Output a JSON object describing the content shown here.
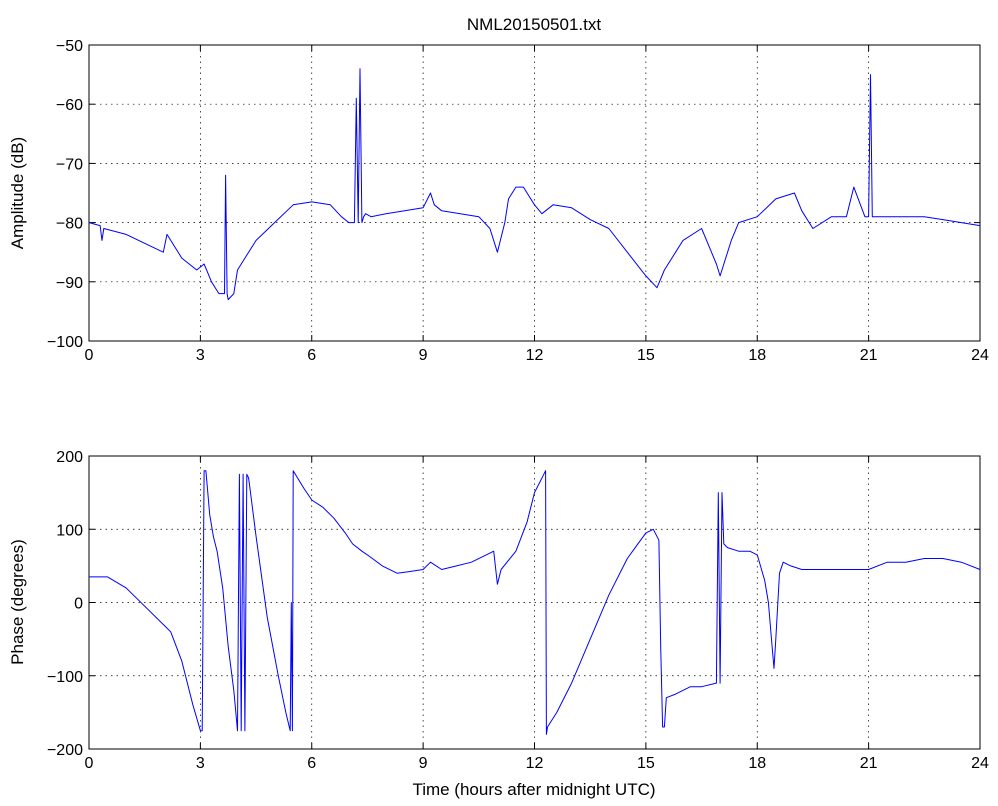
{
  "title": "NML20150501.txt",
  "chart_data": [
    {
      "type": "line",
      "ylabel": "Amplitude (dB)",
      "xlabel": "",
      "xlim": [
        0,
        24
      ],
      "ylim": [
        -100,
        -50
      ],
      "xticks": [
        0,
        3,
        6,
        9,
        12,
        15,
        18,
        21,
        24
      ],
      "yticks": [
        -100,
        -90,
        -80,
        -70,
        -60,
        -50
      ],
      "xtick_labels": [
        "0",
        "3",
        "6",
        "9",
        "12",
        "15",
        "18",
        "21",
        "24"
      ],
      "ytick_labels": [
        "−100",
        "−90",
        "−80",
        "−70",
        "−60",
        "−50"
      ],
      "grid": true,
      "color": "#0000ff",
      "x": [
        0,
        0.3,
        0.35,
        0.4,
        1.0,
        1.5,
        2.0,
        2.1,
        2.5,
        2.9,
        3.1,
        3.3,
        3.5,
        3.65,
        3.68,
        3.72,
        3.75,
        3.9,
        4.0,
        4.2,
        4.5,
        5.0,
        5.5,
        6.0,
        6.5,
        6.8,
        7.0,
        7.15,
        7.2,
        7.25,
        7.3,
        7.35,
        7.4,
        7.45,
        7.6,
        8.0,
        8.5,
        9.0,
        9.2,
        9.3,
        9.5,
        10.0,
        10.5,
        10.8,
        11.0,
        11.2,
        11.3,
        11.5,
        11.7,
        12.0,
        12.2,
        12.5,
        13.0,
        13.5,
        14.0,
        14.5,
        15.0,
        15.3,
        15.5,
        15.8,
        16.0,
        16.5,
        16.9,
        17.0,
        17.3,
        17.5,
        18.0,
        18.5,
        19.0,
        19.2,
        19.5,
        20.0,
        20.4,
        20.6,
        20.9,
        21.0,
        21.05,
        21.1,
        21.2,
        21.5,
        22.0,
        22.5,
        23.0,
        23.5,
        24.0
      ],
      "y": [
        -80,
        -80.5,
        -83,
        -81,
        -82,
        -83.5,
        -85,
        -82,
        -86,
        -88,
        -87,
        -90,
        -92,
        -92,
        -72,
        -92,
        -93,
        -92,
        -88,
        -86,
        -83,
        -80,
        -77,
        -76.5,
        -77,
        -79,
        -80,
        -80,
        -59,
        -80,
        -54,
        -80,
        -79,
        -78.5,
        -79,
        -78.5,
        -78,
        -77.5,
        -75,
        -77,
        -78,
        -78.5,
        -79,
        -81,
        -85,
        -80,
        -76,
        -74,
        -74,
        -77,
        -78.5,
        -77,
        -77.5,
        -79.5,
        -81,
        -85,
        -89,
        -91,
        -88,
        -85,
        -83,
        -81,
        -87,
        -89,
        -83,
        -80,
        -79,
        -76,
        -75,
        -78,
        -81,
        -79,
        -79,
        -74,
        -79,
        -79,
        -55,
        -79,
        -79,
        -79,
        -79,
        -79,
        -79.5,
        -80,
        -80.5
      ]
    },
    {
      "type": "line",
      "ylabel": "Phase (degrees)",
      "xlabel": "Time (hours after midnight UTC)",
      "xlim": [
        0,
        24
      ],
      "ylim": [
        -200,
        200
      ],
      "xticks": [
        0,
        3,
        6,
        9,
        12,
        15,
        18,
        21,
        24
      ],
      "yticks": [
        -200,
        -100,
        0,
        100,
        200
      ],
      "xtick_labels": [
        "0",
        "3",
        "6",
        "9",
        "12",
        "15",
        "18",
        "21",
        "24"
      ],
      "ytick_labels": [
        "−200",
        "−100",
        "0",
        "100",
        "200"
      ],
      "grid": true,
      "color": "#0000ff",
      "x": [
        0,
        0.5,
        1.0,
        1.5,
        2.0,
        2.2,
        2.5,
        2.8,
        3.0,
        3.05,
        3.1,
        3.15,
        3.25,
        3.35,
        3.45,
        3.6,
        3.75,
        3.9,
        4.0,
        4.05,
        4.1,
        4.15,
        4.2,
        4.25,
        4.3,
        4.35,
        4.5,
        4.8,
        5.1,
        5.3,
        5.42,
        5.45,
        5.48,
        5.5,
        5.8,
        6.0,
        6.3,
        6.6,
        6.9,
        7.1,
        7.35,
        7.5,
        7.9,
        8.3,
        8.6,
        9.0,
        9.2,
        9.5,
        9.9,
        10.3,
        10.7,
        10.9,
        11.0,
        11.1,
        11.5,
        11.8,
        12.0,
        12.25,
        12.3,
        12.32,
        12.35,
        12.6,
        13.0,
        13.5,
        14.0,
        14.5,
        15.0,
        15.2,
        15.35,
        15.4,
        15.45,
        15.5,
        15.55,
        15.8,
        16.2,
        16.5,
        16.9,
        16.95,
        17.0,
        17.05,
        17.1,
        17.2,
        17.5,
        17.8,
        18.0,
        18.2,
        18.3,
        18.4,
        18.45,
        18.5,
        18.6,
        18.7,
        18.9,
        19.2,
        19.5,
        20.0,
        20.5,
        21.0,
        21.5,
        22.0,
        22.5,
        23.0,
        23.5,
        24.0
      ],
      "y": [
        35,
        35,
        20,
        -5,
        -30,
        -40,
        -80,
        -140,
        -175,
        -175,
        180,
        180,
        120,
        90,
        70,
        20,
        -60,
        -120,
        -175,
        175,
        -175,
        175,
        -175,
        175,
        170,
        150,
        90,
        -20,
        -100,
        -150,
        -175,
        0,
        -175,
        180,
        155,
        140,
        130,
        115,
        95,
        80,
        70,
        65,
        50,
        40,
        42,
        45,
        55,
        45,
        50,
        55,
        65,
        70,
        25,
        45,
        70,
        110,
        150,
        175,
        180,
        -180,
        -170,
        -150,
        -110,
        -50,
        10,
        60,
        95,
        100,
        85,
        -60,
        -170,
        -170,
        -130,
        -125,
        -115,
        -115,
        -110,
        150,
        -110,
        150,
        80,
        75,
        70,
        70,
        65,
        30,
        0,
        -60,
        -90,
        -50,
        40,
        55,
        50,
        45,
        45,
        45,
        45,
        45,
        55,
        55,
        60,
        60,
        55,
        45
      ]
    }
  ]
}
